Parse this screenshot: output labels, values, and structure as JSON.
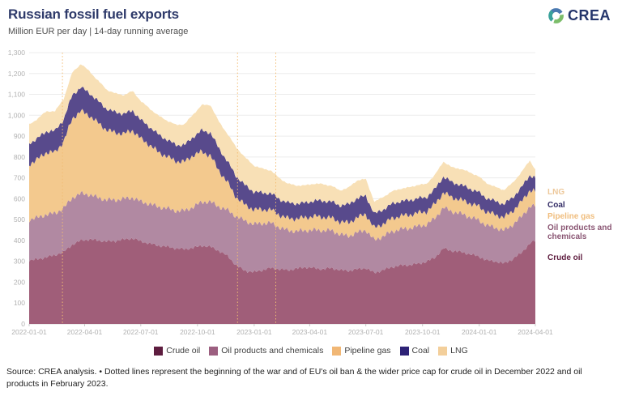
{
  "header": {
    "title": "Russian fossil fuel exports",
    "subtitle": "Million EUR per day | 14-day running average",
    "logo_text": "CREA"
  },
  "footer": {
    "source": "Source: CREA analysis. • Dotted lines represent the beginning of the war and of EU's oil ban & the wider price cap for crude oil in December 2022 and oil products in February 2023."
  },
  "chart_data": {
    "type": "area",
    "stacked": true,
    "title": "Russian fossil fuel exports",
    "ylabel": "Million EUR per day",
    "smoothing": "14-day running average",
    "ylim": [
      0,
      1300
    ],
    "y_tick_step": 100,
    "grid": "horizontal",
    "legend_position": "bottom",
    "x_start": "2022-01-01",
    "x_end": "2024-04-01",
    "x_tick_labels": [
      "2022-01-01",
      "2022-04-01",
      "2022-07-01",
      "2022-10-01",
      "2023-01-01",
      "2023-04-01",
      "2023-07-01",
      "2023-10-01",
      "2024-01-01",
      "2024-04-01"
    ],
    "x_tick_days": [
      0,
      90,
      181,
      273,
      365,
      455,
      546,
      638,
      730,
      821
    ],
    "sample_days": [
      0,
      14,
      28,
      42,
      56,
      70,
      84,
      98,
      112,
      126,
      140,
      154,
      168,
      182,
      196,
      210,
      224,
      238,
      252,
      266,
      280,
      294,
      308,
      322,
      336,
      350,
      364,
      378,
      392,
      406,
      420,
      434,
      448,
      462,
      476,
      490,
      504,
      518,
      532,
      546,
      560,
      574,
      588,
      602,
      616,
      630,
      644,
      658,
      672,
      686,
      700,
      714,
      728,
      742,
      756,
      770,
      784,
      798,
      812,
      821
    ],
    "series": [
      {
        "name": "Crude oil",
        "area_color": "#a05e79",
        "legend_color": "#5e1d3f",
        "values": [
          305,
          310,
          320,
          330,
          345,
          380,
          400,
          405,
          400,
          395,
          398,
          405,
          410,
          395,
          385,
          375,
          370,
          362,
          358,
          365,
          375,
          370,
          350,
          325,
          280,
          255,
          248,
          258,
          268,
          262,
          258,
          265,
          272,
          268,
          262,
          268,
          258,
          255,
          262,
          268,
          245,
          258,
          272,
          280,
          282,
          288,
          298,
          318,
          362,
          350,
          345,
          335,
          325,
          305,
          300,
          290,
          310,
          340,
          385,
          400
        ]
      },
      {
        "name": "Oil products and chemicals",
        "area_color": "#b189a2",
        "legend_color": "#9c5f80",
        "values": [
          195,
          200,
          205,
          200,
          210,
          225,
          225,
          215,
          205,
          200,
          196,
          195,
          195,
          190,
          190,
          186,
          184,
          180,
          185,
          195,
          210,
          215,
          212,
          220,
          235,
          240,
          230,
          224,
          216,
          200,
          190,
          180,
          176,
          182,
          186,
          180,
          172,
          166,
          176,
          182,
          156,
          162,
          170,
          174,
          176,
          180,
          178,
          188,
          196,
          188,
          184,
          178,
          174,
          168,
          162,
          158,
          165,
          172,
          178,
          165
        ]
      },
      {
        "name": "Pipeline gas",
        "area_color": "#f3c98e",
        "legend_color": "#f1b775",
        "values": [
          265,
          280,
          298,
          292,
          320,
          380,
          395,
          378,
          358,
          335,
          322,
          312,
          322,
          300,
          282,
          262,
          248,
          238,
          234,
          248,
          240,
          222,
          172,
          132,
          92,
          76,
          70,
          66,
          64,
          60,
          58,
          60,
          62,
          66,
          64,
          60,
          60,
          64,
          72,
          76,
          58,
          60,
          62,
          64,
          64,
          64,
          62,
          68,
          72,
          68,
          66,
          66,
          66,
          64,
          62,
          62,
          66,
          72,
          78,
          70
        ]
      },
      {
        "name": "Coal",
        "area_color": "#584a8c",
        "legend_color": "#2d2276",
        "values": [
          100,
          100,
          100,
          103,
          106,
          112,
          114,
          108,
          104,
          100,
          98,
          95,
          95,
          90,
          86,
          84,
          80,
          78,
          80,
          88,
          102,
          110,
          106,
          100,
          100,
          94,
          86,
          80,
          78,
          76,
          74,
          72,
          70,
          74,
          78,
          78,
          78,
          88,
          92,
          88,
          68,
          68,
          70,
          70,
          70,
          70,
          68,
          72,
          76,
          72,
          72,
          70,
          68,
          66,
          64,
          64,
          64,
          68,
          72,
          65
        ]
      },
      {
        "name": "LNG",
        "area_color": "#f8e0b6",
        "legend_color": "#f3cf9b",
        "values": [
          90,
          94,
          96,
          94,
          98,
          108,
          112,
          104,
          98,
          92,
          90,
          90,
          94,
          90,
          88,
          90,
          92,
          96,
          100,
          108,
          122,
          132,
          128,
          132,
          138,
          134,
          126,
          116,
          110,
          100,
          92,
          86,
          84,
          82,
          80,
          76,
          72,
          80,
          86,
          80,
          58,
          60,
          60,
          60,
          62,
          64,
          64,
          68,
          72,
          72,
          76,
          78,
          76,
          72,
          68,
          68,
          70,
          74,
          70,
          40
        ]
      }
    ],
    "annotations": {
      "dotted_lines": [
        {
          "day": 54,
          "meaning": "beginning of the war"
        },
        {
          "day": 338,
          "meaning": "EU oil ban & price cap for crude oil (December 2022)"
        },
        {
          "day": 400,
          "meaning": "EU ban on oil products (February 2023)"
        }
      ],
      "dotted_line_color": "#f2bc74"
    },
    "right_labels": [
      {
        "text": "LNG",
        "color": "#edc89a"
      },
      {
        "text": "Coal",
        "color": "#332c66"
      },
      {
        "text": "Pipeline gas",
        "color": "#f0bd7d"
      },
      {
        "text": "Oil products and chemicals",
        "color": "#8a5673"
      },
      {
        "text": "Crude oil",
        "color": "#5e1d3f"
      }
    ],
    "colors_meta": {
      "grid_color": "#ececec",
      "baseline_color": "#d8d8d8",
      "axis_label_color": "#b0b0b0"
    }
  }
}
